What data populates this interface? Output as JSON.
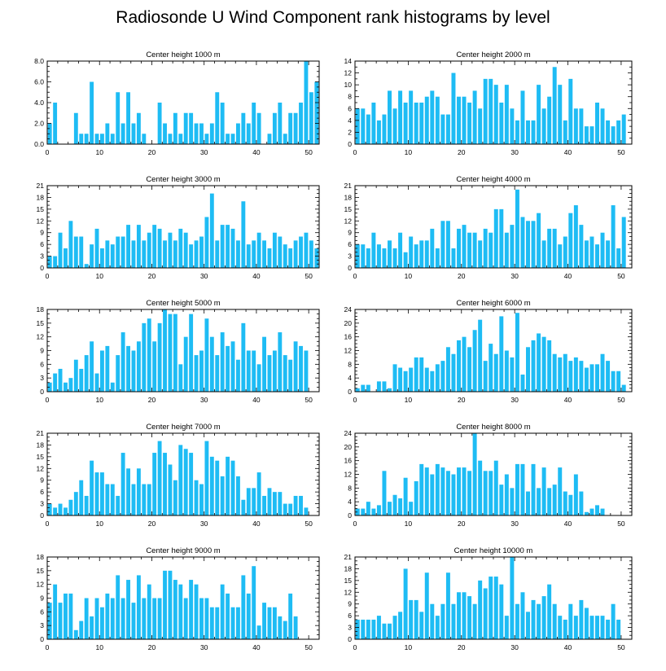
{
  "page_title": "Radiosonde U Wind Component rank histograms by level",
  "colors": {
    "bar": "#1ebcf4",
    "axis": "#000000",
    "background": "#ffffff"
  },
  "chart_data": [
    {
      "type": "bar",
      "title": "Center height 1000 m",
      "ylim": [
        0,
        8
      ],
      "yticks": [
        "0.0",
        "2.0",
        "4.0",
        "6.0",
        "8.0"
      ],
      "ytick_values": [
        0,
        2,
        4,
        6,
        8
      ],
      "xlim": [
        0,
        52
      ],
      "xticks": [
        0,
        10,
        20,
        30,
        40,
        50
      ],
      "values": [
        2,
        4,
        0,
        0,
        0,
        3,
        1,
        1,
        6,
        1,
        1,
        2,
        1,
        5,
        2,
        5,
        2,
        3,
        1,
        0,
        0,
        4,
        2,
        1,
        3,
        1,
        3,
        3,
        2,
        2,
        1,
        2,
        5,
        4,
        1,
        1,
        2,
        3,
        2,
        4,
        3,
        0,
        1,
        3,
        4,
        1,
        3,
        3,
        4,
        8,
        5,
        6
      ]
    },
    {
      "type": "bar",
      "title": "Center height 2000 m",
      "ylim": [
        0,
        14
      ],
      "yticks": [
        "0",
        "2",
        "4",
        "6",
        "8",
        "10",
        "12",
        "14"
      ],
      "ytick_values": [
        0,
        2,
        4,
        6,
        8,
        10,
        12,
        14
      ],
      "xlim": [
        0,
        52
      ],
      "xticks": [
        0,
        10,
        20,
        30,
        40,
        50
      ],
      "values": [
        6,
        6,
        5,
        7,
        4,
        5,
        9,
        6,
        9,
        7,
        9,
        7,
        7,
        8,
        9,
        8,
        5,
        5,
        12,
        8,
        8,
        7,
        9,
        6,
        11,
        11,
        10,
        7,
        10,
        6,
        4,
        9,
        4,
        4,
        10,
        6,
        8,
        13,
        10,
        4,
        11,
        6,
        6,
        3,
        3,
        7,
        6,
        4,
        3,
        4,
        5,
        0
      ]
    },
    {
      "type": "bar",
      "title": "Center height 3000 m",
      "ylim": [
        0,
        21
      ],
      "yticks": [
        "0",
        "3",
        "6",
        "9",
        "12",
        "15",
        "18",
        "21"
      ],
      "ytick_values": [
        0,
        3,
        6,
        9,
        12,
        15,
        18,
        21
      ],
      "xlim": [
        0,
        52
      ],
      "xticks": [
        0,
        10,
        20,
        30,
        40,
        50
      ],
      "values": [
        3,
        3,
        9,
        5,
        12,
        8,
        8,
        1,
        6,
        10,
        5,
        7,
        6,
        8,
        8,
        11,
        7,
        11,
        7,
        9,
        11,
        10,
        7,
        9,
        7,
        10,
        9,
        6,
        7,
        8,
        13,
        19,
        7,
        11,
        11,
        10,
        7,
        17,
        6,
        7,
        9,
        7,
        5,
        9,
        8,
        6,
        5,
        7,
        8,
        9,
        7,
        5
      ]
    },
    {
      "type": "bar",
      "title": "Center height 4000 m",
      "ylim": [
        0,
        21
      ],
      "yticks": [
        "0",
        "3",
        "6",
        "9",
        "12",
        "15",
        "18",
        "21"
      ],
      "ytick_values": [
        0,
        3,
        6,
        9,
        12,
        15,
        18,
        21
      ],
      "xlim": [
        0,
        52
      ],
      "xticks": [
        0,
        10,
        20,
        30,
        40,
        50
      ],
      "values": [
        6,
        6,
        5,
        9,
        6,
        5,
        7,
        5,
        9,
        4,
        8,
        6,
        7,
        7,
        10,
        5,
        12,
        12,
        5,
        10,
        11,
        9,
        9,
        7,
        10,
        9,
        15,
        15,
        9,
        11,
        20,
        13,
        12,
        12,
        14,
        7,
        10,
        10,
        6,
        8,
        14,
        16,
        11,
        7,
        8,
        6,
        9,
        7,
        16,
        5,
        13,
        0
      ]
    },
    {
      "type": "bar",
      "title": "Center height 5000 m",
      "ylim": [
        0,
        18
      ],
      "yticks": [
        "0",
        "3",
        "6",
        "9",
        "12",
        "15",
        "18"
      ],
      "ytick_values": [
        0,
        3,
        6,
        9,
        12,
        15,
        18
      ],
      "xlim": [
        0,
        52
      ],
      "xticks": [
        0,
        10,
        20,
        30,
        40,
        50
      ],
      "values": [
        2,
        4,
        5,
        2,
        3,
        7,
        5,
        8,
        11,
        4,
        9,
        10,
        2,
        8,
        13,
        10,
        9,
        11,
        15,
        16,
        11,
        15,
        18,
        17,
        17,
        6,
        12,
        17,
        8,
        9,
        16,
        12,
        8,
        13,
        10,
        11,
        7,
        15,
        9,
        9,
        6,
        12,
        8,
        9,
        13,
        8,
        7,
        11,
        10,
        9,
        0,
        0
      ]
    },
    {
      "type": "bar",
      "title": "Center height 6000 m",
      "ylim": [
        0,
        24
      ],
      "yticks": [
        "0",
        "4",
        "8",
        "12",
        "16",
        "20",
        "24"
      ],
      "ytick_values": [
        0,
        4,
        8,
        12,
        16,
        20,
        24
      ],
      "xlim": [
        0,
        52
      ],
      "xticks": [
        0,
        10,
        20,
        30,
        40,
        50
      ],
      "values": [
        1,
        2,
        2,
        0,
        3,
        3,
        1,
        8,
        7,
        6,
        7,
        10,
        10,
        7,
        6,
        8,
        9,
        13,
        11,
        15,
        16,
        13,
        18,
        21,
        9,
        14,
        11,
        22,
        12,
        10,
        23,
        5,
        13,
        15,
        17,
        16,
        15,
        11,
        10,
        11,
        9,
        10,
        9,
        7,
        8,
        8,
        11,
        9,
        6,
        6,
        2,
        0
      ]
    },
    {
      "type": "bar",
      "title": "Center height 7000 m",
      "ylim": [
        0,
        21
      ],
      "yticks": [
        "0",
        "3",
        "6",
        "9",
        "12",
        "15",
        "18",
        "21"
      ],
      "ytick_values": [
        0,
        3,
        6,
        9,
        12,
        15,
        18,
        21
      ],
      "xlim": [
        0,
        52
      ],
      "xticks": [
        0,
        10,
        20,
        30,
        40,
        50
      ],
      "values": [
        3,
        2,
        3,
        2,
        4,
        6,
        9,
        5,
        14,
        11,
        11,
        8,
        8,
        5,
        16,
        12,
        8,
        12,
        8,
        8,
        16,
        19,
        16,
        13,
        9,
        18,
        17,
        16,
        9,
        8,
        19,
        15,
        14,
        10,
        15,
        14,
        10,
        4,
        7,
        7,
        11,
        5,
        7,
        6,
        6,
        3,
        3,
        5,
        5,
        2,
        0,
        0
      ]
    },
    {
      "type": "bar",
      "title": "Center height 8000 m",
      "ylim": [
        0,
        24
      ],
      "yticks": [
        "0",
        "4",
        "8",
        "12",
        "16",
        "20",
        "24"
      ],
      "ytick_values": [
        0,
        4,
        8,
        12,
        16,
        20,
        24
      ],
      "xlim": [
        0,
        52
      ],
      "xticks": [
        0,
        10,
        20,
        30,
        40,
        50
      ],
      "values": [
        2,
        2,
        4,
        2,
        3,
        13,
        4,
        6,
        5,
        11,
        4,
        10,
        15,
        14,
        12,
        15,
        14,
        13,
        12,
        14,
        14,
        13,
        24,
        16,
        13,
        13,
        16,
        9,
        12,
        8,
        15,
        15,
        7,
        15,
        8,
        14,
        8,
        9,
        14,
        7,
        6,
        12,
        7,
        1,
        2,
        3,
        2,
        0,
        0,
        0,
        0,
        0
      ]
    },
    {
      "type": "bar",
      "title": "Center height 9000 m",
      "ylim": [
        0,
        18
      ],
      "yticks": [
        "0",
        "3",
        "6",
        "9",
        "12",
        "15",
        "18"
      ],
      "ytick_values": [
        0,
        3,
        6,
        9,
        12,
        15,
        18
      ],
      "xlim": [
        0,
        52
      ],
      "xticks": [
        0,
        10,
        20,
        30,
        40,
        50
      ],
      "values": [
        8,
        12,
        8,
        10,
        10,
        2,
        4,
        9,
        5,
        9,
        7,
        10,
        9,
        14,
        9,
        13,
        8,
        14,
        9,
        12,
        9,
        9,
        15,
        15,
        13,
        12,
        9,
        13,
        12,
        9,
        9,
        7,
        7,
        12,
        10,
        7,
        7,
        14,
        10,
        16,
        3,
        8,
        7,
        7,
        5,
        4,
        10,
        5,
        0,
        0,
        0,
        0
      ]
    },
    {
      "type": "bar",
      "title": "Center height 10000 m",
      "ylim": [
        0,
        21
      ],
      "yticks": [
        "0",
        "3",
        "6",
        "9",
        "12",
        "15",
        "18",
        "21"
      ],
      "ytick_values": [
        0,
        3,
        6,
        9,
        12,
        15,
        18,
        21
      ],
      "xlim": [
        0,
        52
      ],
      "xticks": [
        0,
        10,
        20,
        30,
        40,
        50
      ],
      "values": [
        5,
        5,
        5,
        5,
        6,
        4,
        4,
        6,
        7,
        18,
        10,
        10,
        7,
        17,
        9,
        6,
        9,
        17,
        9,
        12,
        12,
        11,
        9,
        15,
        13,
        16,
        16,
        14,
        6,
        21,
        9,
        12,
        7,
        10,
        9,
        11,
        14,
        9,
        6,
        5,
        9,
        6,
        10,
        8,
        6,
        6,
        6,
        5,
        9,
        5,
        0,
        0
      ]
    }
  ]
}
